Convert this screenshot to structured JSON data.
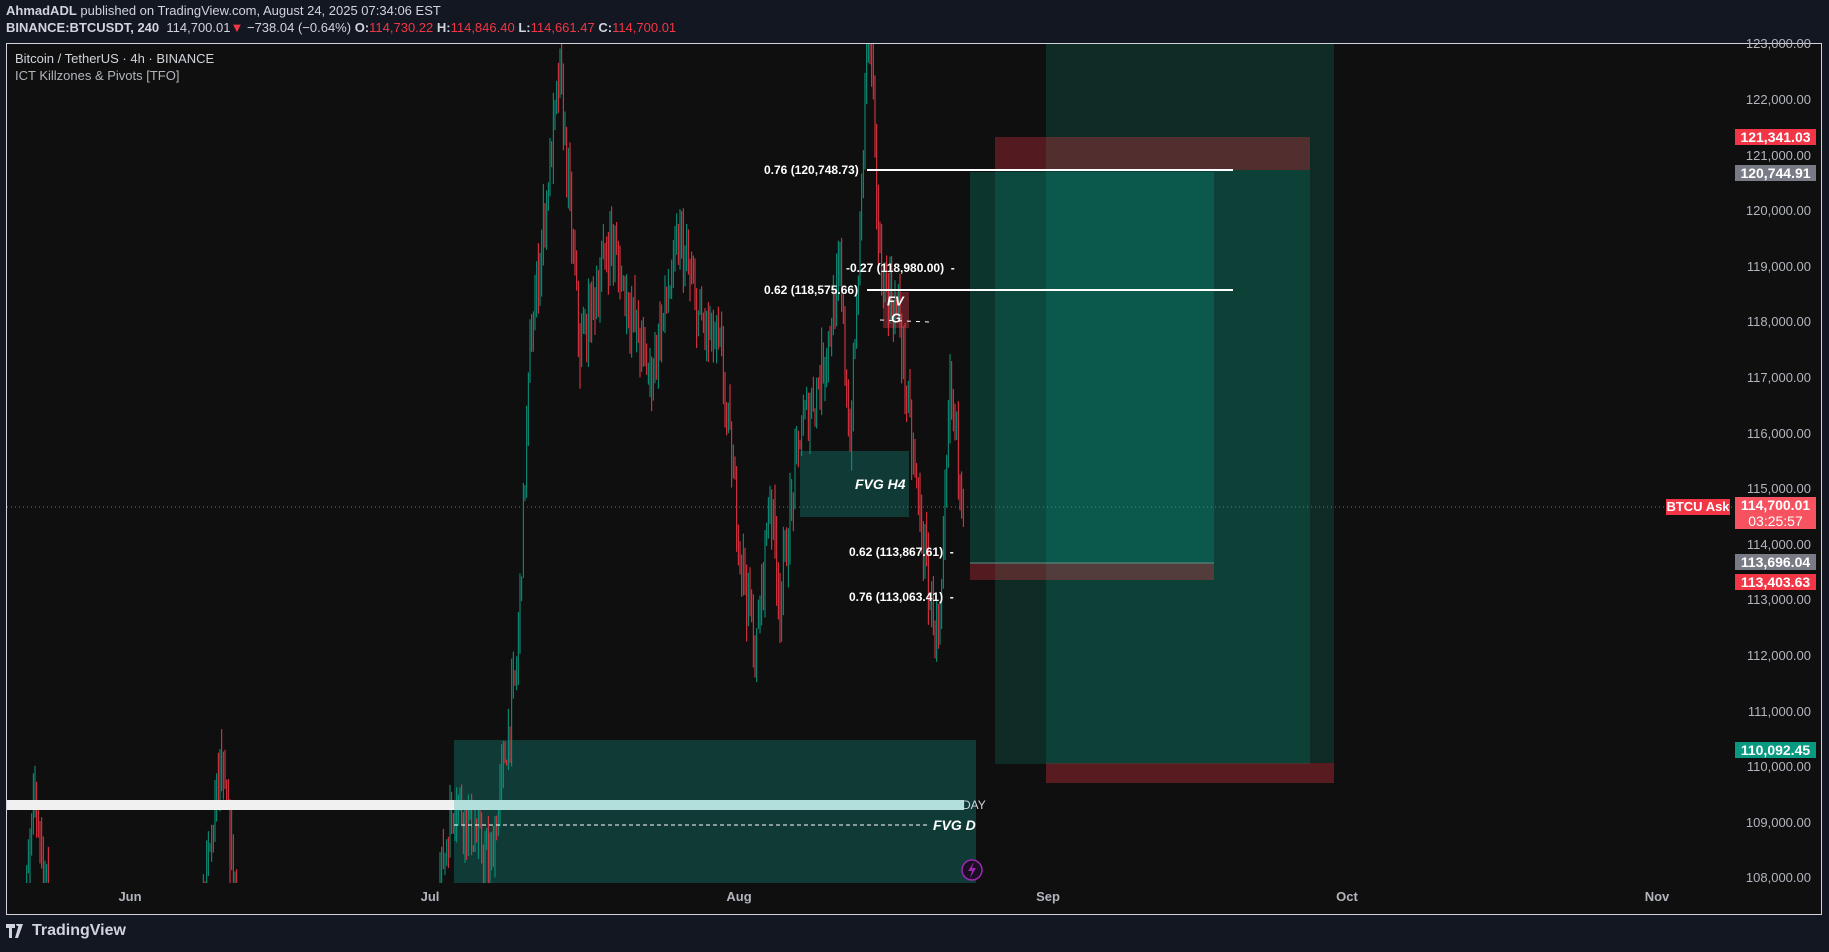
{
  "header": {
    "author": "AhmadADL",
    "published": "published on TradingView.com, August 24, 2025 07:34:06 EST",
    "symbol": "BINANCE:BTCUSDT, 240",
    "last": "114,700.01",
    "change": "−738.04 (−0.64%)",
    "o_label": "O:",
    "o": "114,730.22",
    "h_label": "H:",
    "h": "114,846.40",
    "l_label": "L:",
    "l": "114,661.47",
    "c_label": "C:",
    "c": "114,700.01"
  },
  "legend": {
    "title": "Bitcoin / TetherUS · 4h · BINANCE",
    "indicator": "ICT Killzones & Pivots [TFO]"
  },
  "price_axis": [
    "123,000.00",
    "122,000.00",
    "121,000.00",
    "120,000.00",
    "119,000.00",
    "118,000.00",
    "117,000.00",
    "116,000.00",
    "115,000.00",
    "114,000.00",
    "113,000.00",
    "112,000.00",
    "111,000.00",
    "110,000.00",
    "109,000.00",
    "108,000.00"
  ],
  "price_labels": [
    {
      "text": "121,341.03",
      "color": "#f23645"
    },
    {
      "text": "120,744.91",
      "color": "#787b86"
    },
    {
      "text": "114,700.01",
      "color": "#f7525f",
      "countdown": "03:25:57"
    },
    {
      "text": "113,696.04",
      "color": "#787b86"
    },
    {
      "text": "113,403.63",
      "color": "#f23645"
    },
    {
      "text": "110,092.45",
      "color": "#089981"
    }
  ],
  "ask_label": "BTCU Ask",
  "time_axis": [
    "Jun",
    "Jul",
    "Aug",
    "Sep",
    "Oct",
    "Nov"
  ],
  "annotations": {
    "fib_076_top": "0.76 (120,748.73)",
    "fib_027": "-0.27 (118,980.00)",
    "fib_062_top": "0.62 (118,575.66)",
    "fib_062_bottom": "0.62 (113,867.61)",
    "fib_076_bottom": "0.76 (113,063.41)",
    "fvg_small_1": "FV",
    "fvg_small_2": "G",
    "fvg_h4": "FVG H4",
    "fvg_d": "FVG D",
    "day_label": "DAY"
  },
  "colors": {
    "up": "#089981",
    "down": "#f23645",
    "background": "#0f0f0f",
    "header": "#131722",
    "alert": "#9c27b0"
  },
  "icons": {
    "alert": "lightning-icon",
    "logo": "tradingview-logo"
  },
  "footer": {
    "brand": "TradingView"
  }
}
